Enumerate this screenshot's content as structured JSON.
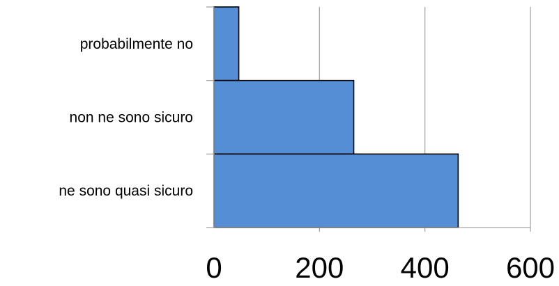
{
  "chart_data": {
    "type": "bar",
    "orientation": "horizontal",
    "categories": [
      "probabilmente no",
      "non ne sono sicuro",
      "ne sono quasi sicuro"
    ],
    "values": [
      47,
      265,
      463
    ],
    "title": "",
    "xlabel": "",
    "ylabel": "",
    "xlim": [
      0,
      600
    ],
    "xticks": [
      "0",
      "200",
      "400",
      "600"
    ],
    "grid": "vertical",
    "legend": "none",
    "bar_color": "#558ED5",
    "bar_edge_color": "#000000",
    "grid_color": "#A6A6A6"
  }
}
